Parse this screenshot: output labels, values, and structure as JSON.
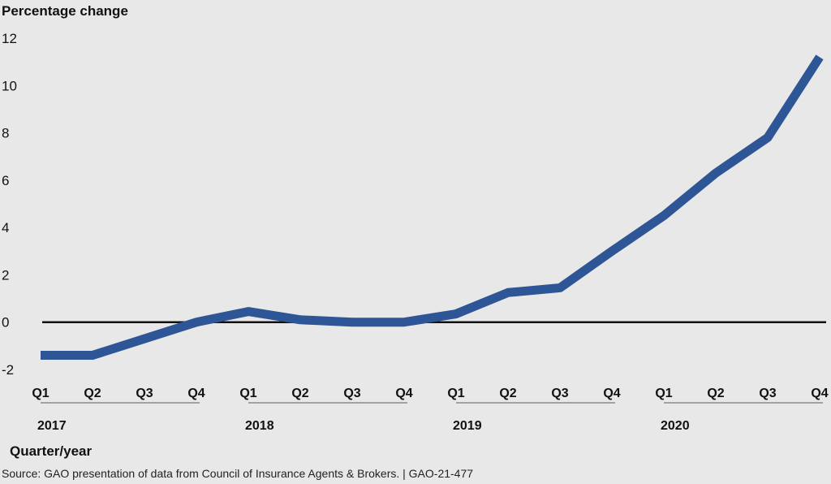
{
  "chart_data": {
    "type": "line",
    "ylabel": "Percentage change",
    "xlabel": "Quarter/year",
    "ylim": [
      -2,
      12
    ],
    "yticks": [
      "12",
      "10",
      "8",
      "6",
      "4",
      "2",
      "0",
      "-2"
    ],
    "ytick_values": [
      12,
      10,
      8,
      6,
      4,
      2,
      0,
      -2
    ],
    "quarters": [
      "Q1",
      "Q2",
      "Q3",
      "Q4",
      "Q1",
      "Q2",
      "Q3",
      "Q4",
      "Q1",
      "Q2",
      "Q3",
      "Q4",
      "Q1",
      "Q2",
      "Q3",
      "Q4"
    ],
    "years": [
      "2017",
      "2018",
      "2019",
      "2020"
    ],
    "series": [
      {
        "values": [
          -1.4,
          -1.4,
          -0.7,
          0.0,
          0.45,
          0.1,
          0.0,
          0.0,
          0.35,
          1.25,
          1.45,
          3.0,
          4.5,
          6.3,
          7.8,
          11.2
        ],
        "color": "#2e5596"
      }
    ],
    "zero_line": true,
    "grid": false
  },
  "source_text": "Source: GAO presentation of data from Council of Insurance Agents & Brokers.  |  GAO-21-477"
}
